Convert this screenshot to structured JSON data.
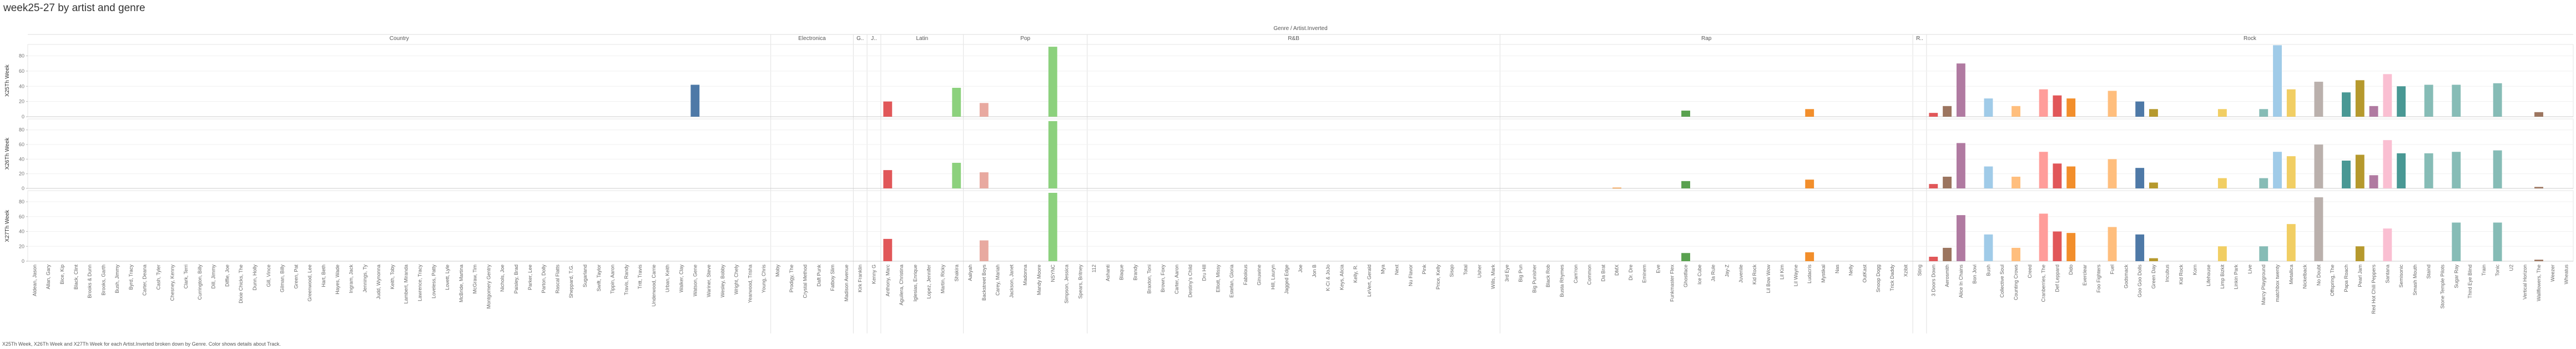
{
  "title": "week25-27 by artist and genre",
  "caption": "X25Th Week, X26Th Week and X27Th Week for each Artist.Inverted broken down by Genre.  Color shows details about Track.",
  "chart_data": {
    "type": "bar",
    "column_header": "Genre / Artist.Inverted",
    "measures": [
      "X25Th Week",
      "X26Th Week",
      "X27Th Week"
    ],
    "y_ticks": [
      0,
      20,
      40,
      60,
      80
    ],
    "ylim": [
      0,
      95
    ],
    "grid": true,
    "genres": [
      {
        "name": "Country",
        "artists": [
          "Aldean, Jason",
          "Allan, Gary",
          "Bice, Kip",
          "Black, Clint",
          "Brooks & Dunn",
          "Brooks, Garth",
          "Bush, Jimmy",
          "Byrd, Tracy",
          "Carter, Deana",
          "Cash, Tyler",
          "Chesney, Kenny",
          "Clark, Terri",
          "Currington, Billy",
          "Dill, Jimmy",
          "Diffie, Joe",
          "Dixie Chicks, The",
          "Dunn, Holly",
          "Gill, Vince",
          "Gilman, Billy",
          "Green, Pat",
          "Greenwood, Lee",
          "Hart, Beth",
          "Hayes, Wade",
          "Ingram, Jack",
          "Jennings, Ty",
          "Judd, Wynonna",
          "Keith, Toby",
          "Lambert, Miranda",
          "Lawrence, Tracy",
          "Loveless, Patty",
          "Lovett, Lyle",
          "McBride, Martina",
          "McGraw, Tim",
          "Montgomery Gentry",
          "Nichols, Joe",
          "Paisley, Brad",
          "Parker, Lee",
          "Parton, Dolly",
          "Rascal Flatts",
          "Sheppard, T.G.",
          "Sugarland",
          "Swift, Taylor",
          "Tippin, Aaron",
          "Travis, Randy",
          "Tritt, Travis",
          "Underwood, Carrie",
          "Urban, Keith",
          "Walker, Clay",
          "Watson, Gene",
          "Wariner, Steve",
          "Wesley, Bobby",
          "Wright, Chely",
          "Yearwood, Trisha",
          "Young, Chris"
        ]
      },
      {
        "name": "Electronica",
        "artists": [
          "Moby",
          "Prodigy, The",
          "Crystal Method",
          "Daft Punk",
          "Fatboy Slim",
          "Madison Avenue"
        ]
      },
      {
        "name": "G..",
        "artists": [
          "Kirk Franklin"
        ]
      },
      {
        "name": "J..",
        "artists": [
          "Kenny G"
        ]
      },
      {
        "name": "Latin",
        "artists": [
          "Anthony, Marc",
          "Aguilera, Christina",
          "Iglesias, Enrique",
          "Lopez, Jennifer",
          "Martin, Ricky",
          "Shakira"
        ]
      },
      {
        "name": "Pop",
        "artists": [
          "Aaliyah",
          "Backstreet Boys",
          "Carey, Mariah",
          "Jackson, Janet",
          "Madonna",
          "Mandy Moore",
          "NSYNC",
          "Simpson, Jessica",
          "Spears, Britney"
        ]
      },
      {
        "name": "R&B",
        "artists": [
          "112",
          "Ashanti",
          "Blaque",
          "Brandy",
          "Braxton, Toni",
          "Brown, Foxy",
          "Carter, Aaron",
          "Destiny's Child",
          "Dru Hill",
          "Elliott, Missy",
          "Estefan, Gloria",
          "Fabolous",
          "Ginuwine",
          "Hill, Lauryn",
          "Jagged Edge",
          "Joe",
          "Jon B",
          "K-Ci & JoJo",
          "Keys, Alicia",
          "Kelly, R.",
          "LeVert, Gerald",
          "Mya",
          "Next",
          "Nu Flavor",
          "Pink",
          "Price, Kelly",
          "Sisqo",
          "Total",
          "Usher",
          "Wills, Mark"
        ]
      },
      {
        "name": "Rap",
        "artists": [
          "3rd Eye",
          "Big Pun",
          "Big Punisher",
          "Black Rob",
          "Busta Rhymes",
          "Cam'ron",
          "Common",
          "Da Brat",
          "DMX",
          "Dr. Dre",
          "Eminem",
          "Eve",
          "Funkmaster Flex",
          "Ghostface",
          "Ice Cube",
          "Ja Rule",
          "Jay-Z",
          "Juvenile",
          "Kid Rock",
          "Lil Bow Wow",
          "Lil Kim",
          "Lil Wayne",
          "Ludacris",
          "Mystikal",
          "Nas",
          "Nelly",
          "OutKast",
          "Snoop Dogg",
          "Trick Daddy",
          "Xzibit"
        ]
      },
      {
        "name": "R..",
        "artists": [
          "Sting"
        ]
      },
      {
        "name": "Rock",
        "artists": [
          "3 Doors Down",
          "Aerosmith",
          "Alice In Chains",
          "Bon Jovi",
          "Bush",
          "Collective Soul",
          "Counting Crows",
          "Creed",
          "Cranberries, The",
          "Def Leppard",
          "Dido",
          "Everclear",
          "Foo Fighters",
          "Fuel",
          "Godsmack",
          "Goo Goo Dolls",
          "Green Day",
          "Incubus",
          "Kid Rock",
          "Korn",
          "Lifehouse",
          "Limp Bizkit",
          "Linkin Park",
          "Live",
          "Marcy Playground",
          "matchbox twenty",
          "Metallica",
          "Nickelback",
          "No Doubt",
          "Offspring, The",
          "Papa Roach",
          "Pearl Jam",
          "Red Hot Chili Peppers",
          "Santana",
          "Semisonic",
          "Smash Mouth",
          "Staind",
          "Stone Temple Pilots",
          "Sugar Ray",
          "Third Eye Blind",
          "Train",
          "Tonic",
          "U2",
          "Vertical Horizon",
          "Wallflowers, The",
          "Weezer",
          "Wheatus"
        ]
      }
    ],
    "bars": [
      {
        "genre": 0,
        "artist": 48,
        "color": "#4e79a7",
        "values": [
          42,
          0,
          0
        ]
      },
      {
        "genre": 4,
        "artist": 0,
        "color": "#e15759",
        "values": [
          20,
          25,
          30
        ]
      },
      {
        "genre": 4,
        "artist": 5,
        "color": "#8cd17d",
        "values": [
          38,
          35,
          0
        ]
      },
      {
        "genre": 5,
        "artist": 1,
        "color": "#e8a9a0",
        "values": [
          18,
          22,
          28
        ]
      },
      {
        "genre": 5,
        "artist": 6,
        "color": "#8cd17d",
        "values": [
          92,
          92,
          92
        ]
      },
      {
        "genre": 7,
        "artist": 8,
        "color": "#f28e2b",
        "values": [
          0,
          1,
          0
        ]
      },
      {
        "genre": 7,
        "artist": 13,
        "color": "#59a14f",
        "values": [
          8,
          10,
          11
        ]
      },
      {
        "genre": 7,
        "artist": 22,
        "color": "#f28e2b",
        "values": [
          10,
          12,
          12
        ]
      },
      {
        "genre": 9,
        "artist": 0,
        "color": "#e15759",
        "values": [
          5,
          6,
          6
        ]
      },
      {
        "genre": 9,
        "artist": 1,
        "color": "#9c755f",
        "values": [
          14,
          16,
          18
        ]
      },
      {
        "genre": 9,
        "artist": 2,
        "color": "#b07aa1",
        "values": [
          70,
          62,
          62
        ]
      },
      {
        "genre": 9,
        "artist": 4,
        "color": "#a0cbe8",
        "values": [
          24,
          30,
          36
        ]
      },
      {
        "genre": 9,
        "artist": 6,
        "color": "#ffbe7d",
        "values": [
          14,
          16,
          18
        ]
      },
      {
        "genre": 9,
        "artist": 8,
        "color": "#ff9d9a",
        "values": [
          36,
          50,
          64
        ]
      },
      {
        "genre": 9,
        "artist": 9,
        "color": "#e15759",
        "values": [
          28,
          34,
          40
        ]
      },
      {
        "genre": 9,
        "artist": 10,
        "color": "#f28e2b",
        "values": [
          24,
          30,
          38
        ]
      },
      {
        "genre": 9,
        "artist": 13,
        "color": "#ffbe7d",
        "values": [
          34,
          40,
          46
        ]
      },
      {
        "genre": 9,
        "artist": 15,
        "color": "#4e79a7",
        "values": [
          20,
          28,
          36
        ]
      },
      {
        "genre": 9,
        "artist": 16,
        "color": "#b6992d",
        "values": [
          10,
          8,
          4
        ]
      },
      {
        "genre": 9,
        "artist": 21,
        "color": "#f1ce63",
        "values": [
          10,
          14,
          20
        ]
      },
      {
        "genre": 9,
        "artist": 24,
        "color": "#86bcb6",
        "values": [
          10,
          14,
          20
        ]
      },
      {
        "genre": 9,
        "artist": 25,
        "color": "#a0cbe8",
        "values": [
          94,
          50,
          0
        ]
      },
      {
        "genre": 9,
        "artist": 26,
        "color": "#f1ce63",
        "values": [
          36,
          44,
          50
        ]
      },
      {
        "genre": 9,
        "artist": 28,
        "color": "#bab0ac",
        "values": [
          46,
          60,
          86
        ]
      },
      {
        "genre": 9,
        "artist": 30,
        "color": "#499894",
        "values": [
          32,
          38,
          0
        ]
      },
      {
        "genre": 9,
        "artist": 31,
        "color": "#b6992d",
        "values": [
          48,
          46,
          20
        ]
      },
      {
        "genre": 9,
        "artist": 32,
        "color": "#b07aa1",
        "values": [
          14,
          18,
          0
        ]
      },
      {
        "genre": 9,
        "artist": 33,
        "color": "#fabfd2",
        "values": [
          56,
          66,
          44
        ]
      },
      {
        "genre": 9,
        "artist": 34,
        "color": "#499894",
        "values": [
          40,
          48,
          0
        ]
      },
      {
        "genre": 9,
        "artist": 36,
        "color": "#86bcb6",
        "values": [
          42,
          48,
          0
        ]
      },
      {
        "genre": 9,
        "artist": 38,
        "color": "#86bcb6",
        "values": [
          42,
          50,
          52
        ]
      },
      {
        "genre": 9,
        "artist": 41,
        "color": "#86bcb6",
        "values": [
          44,
          52,
          52
        ]
      },
      {
        "genre": 9,
        "artist": 44,
        "color": "#9c755f",
        "values": [
          6,
          2,
          2
        ]
      }
    ]
  }
}
